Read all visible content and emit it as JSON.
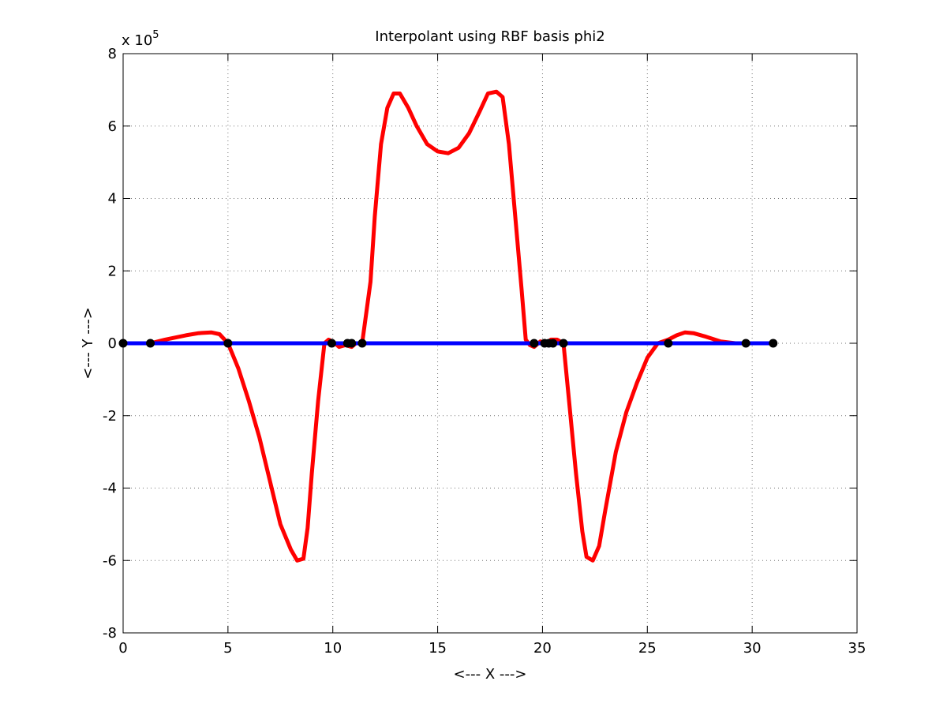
{
  "chart_data": {
    "type": "line",
    "title": "Interpolant using RBF basis phi2",
    "xlabel": "<--- X --->",
    "ylabel": "<--- Y --->",
    "y_exponent_label": "x 10",
    "y_exponent_power": "5",
    "xlim": [
      0,
      35
    ],
    "ylim": [
      -8,
      8
    ],
    "y_scale_note": "values in units of 1e5",
    "grid": true,
    "x_ticks": [
      "0",
      "5",
      "10",
      "15",
      "20",
      "25",
      "30",
      "35"
    ],
    "x_tick_values": [
      0,
      5,
      10,
      15,
      20,
      25,
      30,
      35
    ],
    "y_ticks": [
      "-8",
      "-6",
      "-4",
      "-2",
      "0",
      "2",
      "4",
      "6",
      "8"
    ],
    "y_tick_values": [
      -8,
      -6,
      -4,
      -2,
      0,
      2,
      4,
      6,
      8
    ],
    "series": [
      {
        "color": "#ff0000",
        "x": [
          0,
          1.3,
          2.0,
          3.0,
          3.6,
          4.2,
          4.6,
          5.0,
          5.5,
          6.0,
          6.5,
          7.0,
          7.5,
          8.0,
          8.3,
          8.6,
          8.8,
          9.0,
          9.3,
          9.6,
          9.8,
          10.0,
          10.3,
          10.6,
          10.9,
          11.1,
          11.4,
          11.8,
          12.0,
          12.3,
          12.6,
          12.9,
          13.2,
          13.6,
          14.0,
          14.5,
          15.0,
          15.5,
          16.0,
          16.5,
          17.0,
          17.4,
          17.8,
          18.1,
          18.4,
          18.7,
          19.0,
          19.2,
          19.4,
          19.6,
          19.9,
          20.2,
          20.4,
          20.7,
          21.0,
          21.3,
          21.6,
          21.9,
          22.1,
          22.4,
          22.7,
          23.0,
          23.5,
          24.0,
          24.5,
          25.0,
          25.5,
          26.0,
          26.4,
          26.8,
          27.2,
          27.8,
          28.5,
          29.2,
          29.7,
          30.3,
          31.0
        ],
        "y": [
          0,
          0,
          0.1,
          0.22,
          0.28,
          0.3,
          0.25,
          0,
          -0.7,
          -1.6,
          -2.6,
          -3.8,
          -5.0,
          -5.7,
          -6.0,
          -5.95,
          -5.1,
          -3.6,
          -1.6,
          0.0,
          0.1,
          0.05,
          -0.1,
          -0.05,
          -0.1,
          0.0,
          0.0,
          1.7,
          3.5,
          5.5,
          6.5,
          6.9,
          6.9,
          6.5,
          6.0,
          5.5,
          5.3,
          5.25,
          5.4,
          5.8,
          6.4,
          6.9,
          6.95,
          6.8,
          5.5,
          3.5,
          1.5,
          0.1,
          -0.05,
          -0.1,
          0.05,
          0.0,
          0.1,
          0.1,
          0.0,
          -1.8,
          -3.6,
          -5.2,
          -5.9,
          -6.0,
          -5.6,
          -4.6,
          -3.0,
          -1.9,
          -1.1,
          -0.4,
          0.0,
          0.1,
          0.22,
          0.3,
          0.28,
          0.18,
          0.05,
          0.0,
          0.0,
          0.0,
          0.0
        ]
      },
      {
        "color": "#0000ff",
        "x": [
          0,
          31
        ],
        "y": [
          0,
          0
        ]
      }
    ],
    "points": {
      "color": "#000000",
      "x": [
        0,
        1.3,
        5.0,
        9.95,
        10.7,
        10.9,
        11.4,
        19.6,
        20.1,
        20.3,
        20.5,
        21.0,
        26.0,
        29.7,
        31.0
      ],
      "y": [
        0,
        0,
        0,
        0,
        0,
        0,
        0,
        0,
        0,
        0,
        0,
        0,
        0,
        0,
        0
      ]
    }
  }
}
